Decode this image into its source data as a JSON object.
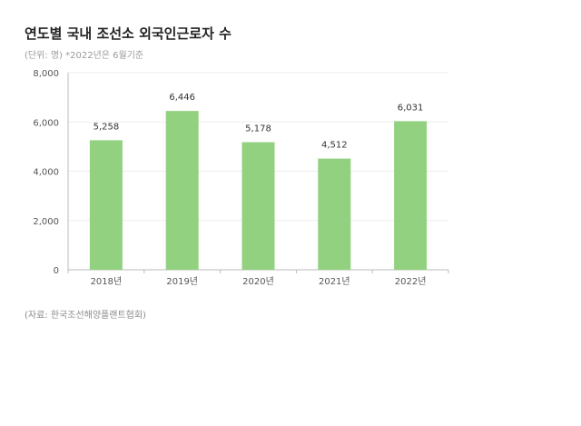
{
  "title": "연도별 국내 조선소 외국인근로자 수",
  "subtitle": "(단위: 명) *2022년은 6월기준",
  "source": "(자료: 한국조선해양플랜트협회)",
  "colors": {
    "bar": "#92d180",
    "axis": "#bbbbbb",
    "grid": "#eeeeee",
    "title": "#222222"
  },
  "chart_data": {
    "type": "bar",
    "categories": [
      "2018년",
      "2019년",
      "2020년",
      "2021년",
      "2022년"
    ],
    "values": [
      5258,
      6446,
      5178,
      4512,
      6031
    ],
    "data_labels": [
      "5,258",
      "6,446",
      "5,178",
      "4,512",
      "6,031"
    ],
    "title": "연도별 국내 조선소 외국인근로자 수",
    "xlabel": "",
    "ylabel": "",
    "ylim": [
      0,
      8000
    ],
    "yticks": [
      0,
      2000,
      4000,
      6000,
      8000
    ],
    "ytick_labels": [
      "0",
      "2,000",
      "4,000",
      "6,000",
      "8,000"
    ],
    "grid": true,
    "legend": "none"
  }
}
